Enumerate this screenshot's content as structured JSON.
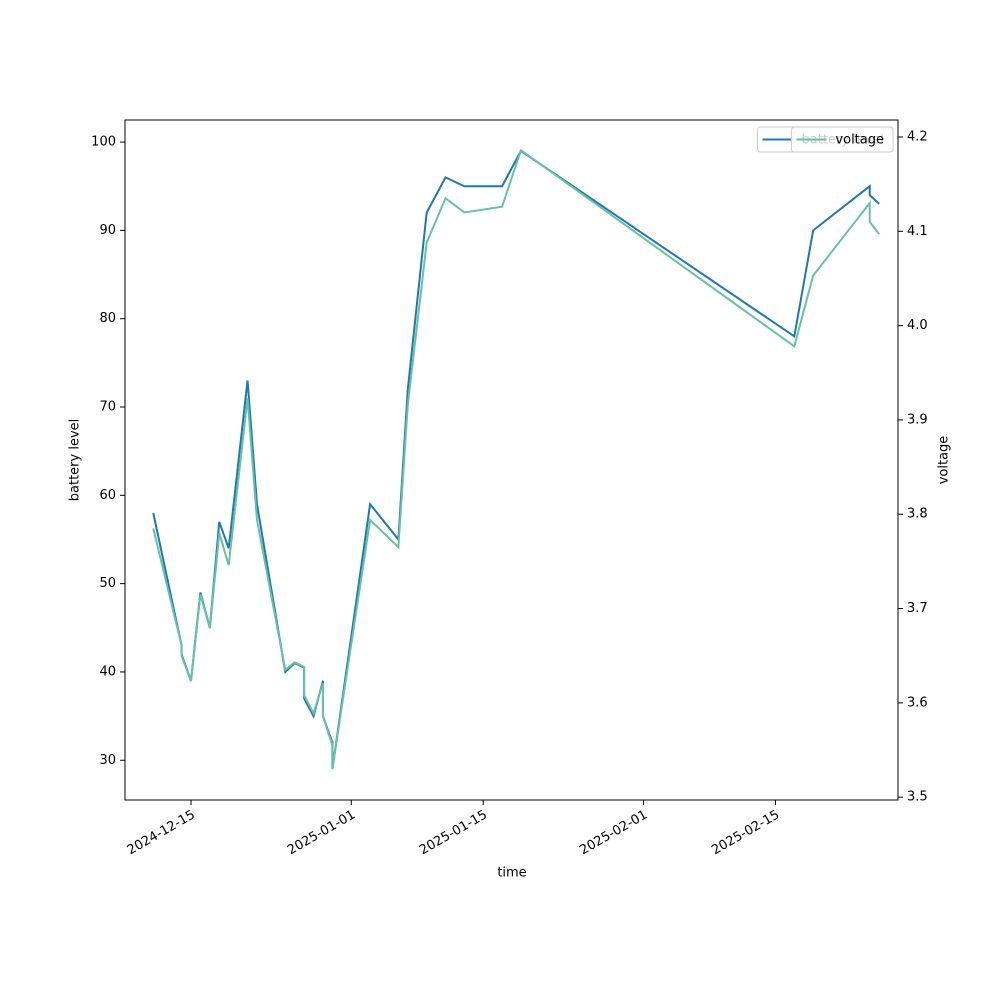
{
  "chart_data": {
    "type": "line",
    "x_label": "time",
    "y_label": "battery level",
    "y2_label": "voltage",
    "x": [
      "2024-12-11",
      "2024-12-14",
      "2024-12-14",
      "2024-12-15",
      "2024-12-16",
      "2024-12-17",
      "2024-12-18",
      "2024-12-19",
      "2024-12-21",
      "2024-12-22",
      "2024-12-25",
      "2024-12-26",
      "2024-12-27",
      "2024-12-27",
      "2024-12-28",
      "2024-12-29",
      "2024-12-29",
      "2024-12-30",
      "2024-12-30",
      "2025-01-03",
      "2025-01-06",
      "2025-01-07",
      "2025-01-09",
      "2025-01-11",
      "2025-01-13",
      "2025-01-17",
      "2025-01-19",
      "2025-02-17",
      "2025-02-19",
      "2025-02-25",
      "2025-02-25",
      "2025-02-26"
    ],
    "series": [
      {
        "name": "battery level",
        "color": "#1f77b4",
        "axis": "y",
        "values": [
          58,
          43,
          42,
          39,
          49,
          45,
          57,
          54,
          73,
          59,
          40,
          41,
          40.5,
          37,
          35,
          39,
          35,
          32,
          29,
          59,
          55,
          72,
          92,
          96,
          95,
          95,
          99,
          78,
          90,
          95,
          94,
          93
        ]
      },
      {
        "name": "voltage",
        "color": "#66c2a5",
        "axis": "y2",
        "values": [
          3.785,
          3.661,
          3.65,
          3.623,
          3.715,
          3.679,
          3.78,
          3.746,
          3.923,
          3.794,
          3.635,
          3.643,
          3.638,
          3.608,
          3.589,
          3.621,
          3.586,
          3.555,
          3.53,
          3.794,
          3.765,
          3.916,
          4.088,
          4.135,
          4.12,
          4.126,
          4.186,
          3.978,
          4.053,
          4.13,
          4.11,
          4.097
        ]
      }
    ],
    "xlim": [
      "2024-12-08",
      "2025-02-28"
    ],
    "xticks": [
      "2024-12-15",
      "2025-01-01",
      "2025-01-15",
      "2025-02-01",
      "2025-02-15"
    ],
    "ylim": [
      25.5,
      102.5
    ],
    "yticks": [
      30,
      40,
      50,
      60,
      70,
      80,
      90,
      100
    ],
    "y2lim": [
      3.497,
      4.218
    ],
    "y2ticks": [
      3.5,
      3.6,
      3.7,
      3.8,
      3.9,
      {
        "value": 4,
        "label": "4.0"
      },
      4.1,
      4.2
    ],
    "legend": "upper right"
  }
}
